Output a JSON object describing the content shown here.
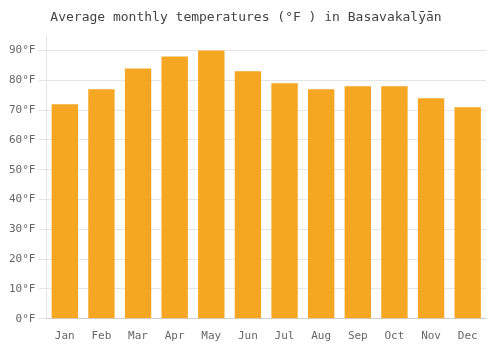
{
  "chart_data": {
    "type": "bar",
    "title": "Average monthly temperatures (°F ) in Basavakalȳān",
    "categories": [
      "Jan",
      "Feb",
      "Mar",
      "Apr",
      "May",
      "Jun",
      "Jul",
      "Aug",
      "Sep",
      "Oct",
      "Nov",
      "Dec"
    ],
    "values": [
      72,
      77,
      84,
      88,
      90,
      83,
      79,
      77,
      78,
      78,
      74,
      71
    ],
    "color": "#F5A623",
    "ylim": [
      0,
      95
    ],
    "yticks": [
      {
        "value": 0,
        "label": "0°F"
      },
      {
        "value": 10,
        "label": "10°F"
      },
      {
        "value": 20,
        "label": "20°F"
      },
      {
        "value": 30,
        "label": "30°F"
      },
      {
        "value": 40,
        "label": "40°F"
      },
      {
        "value": 50,
        "label": "50°F"
      },
      {
        "value": 60,
        "label": "60°F"
      },
      {
        "value": 70,
        "label": "70°F"
      },
      {
        "value": 80,
        "label": "80°F"
      },
      {
        "value": 90,
        "label": "90°F"
      }
    ],
    "grid": true
  }
}
